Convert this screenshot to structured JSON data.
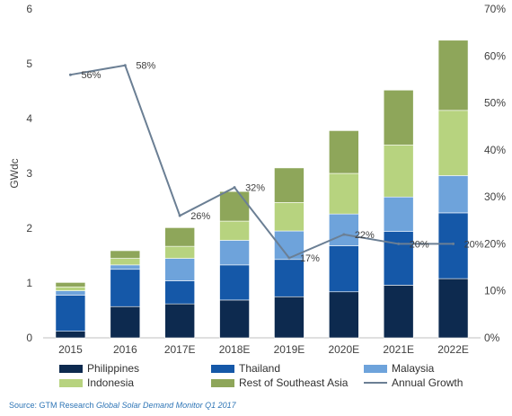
{
  "chart_data": {
    "type": "bar",
    "stacked": true,
    "categories": [
      "2015",
      "2016",
      "2017E",
      "2018E",
      "2019E",
      "2020E",
      "2021E",
      "2022E"
    ],
    "ylabel": "GWdc",
    "ylim": [
      0,
      6
    ],
    "yticks": [
      "0",
      "1",
      "2",
      "3",
      "4",
      "5",
      "6"
    ],
    "y2lim": [
      0,
      0.7
    ],
    "y2ticks": [
      "0%",
      "10%",
      "20%",
      "30%",
      "40%",
      "50%",
      "60%",
      "70%"
    ],
    "series": [
      {
        "name": "Philippines",
        "color": "#0d2a4f",
        "values": [
          0.12,
          0.57,
          0.62,
          0.69,
          0.75,
          0.84,
          0.96,
          1.08
        ]
      },
      {
        "name": "Thailand",
        "color": "#1558a8",
        "values": [
          0.66,
          0.68,
          0.42,
          0.64,
          0.68,
          0.84,
          0.98,
          1.2
        ]
      },
      {
        "name": "Malaysia",
        "color": "#6ea3db",
        "values": [
          0.08,
          0.08,
          0.41,
          0.45,
          0.52,
          0.58,
          0.63,
          0.68
        ]
      },
      {
        "name": "Indonesia",
        "color": "#b7d37f",
        "values": [
          0.07,
          0.12,
          0.22,
          0.35,
          0.52,
          0.74,
          0.95,
          1.19
        ]
      },
      {
        "name": "Rest of Southeast Asia",
        "color": "#8ea65a",
        "values": [
          0.08,
          0.14,
          0.34,
          0.54,
          0.63,
          0.78,
          1.0,
          1.28
        ]
      }
    ],
    "line": {
      "name": "Annual Growth",
      "color": "#6b7f94",
      "values": [
        0.56,
        0.58,
        0.26,
        0.32,
        0.17,
        0.22,
        0.2,
        0.2
      ],
      "labels": [
        "56%",
        "58%",
        "26%",
        "32%",
        "17%",
        "22%",
        "20%",
        "20%"
      ]
    },
    "grid": false,
    "legend": "bottom"
  },
  "source": {
    "prefix": "Source: GTM Research ",
    "title": "Global Solar Demand Monitor Q1 2017"
  }
}
